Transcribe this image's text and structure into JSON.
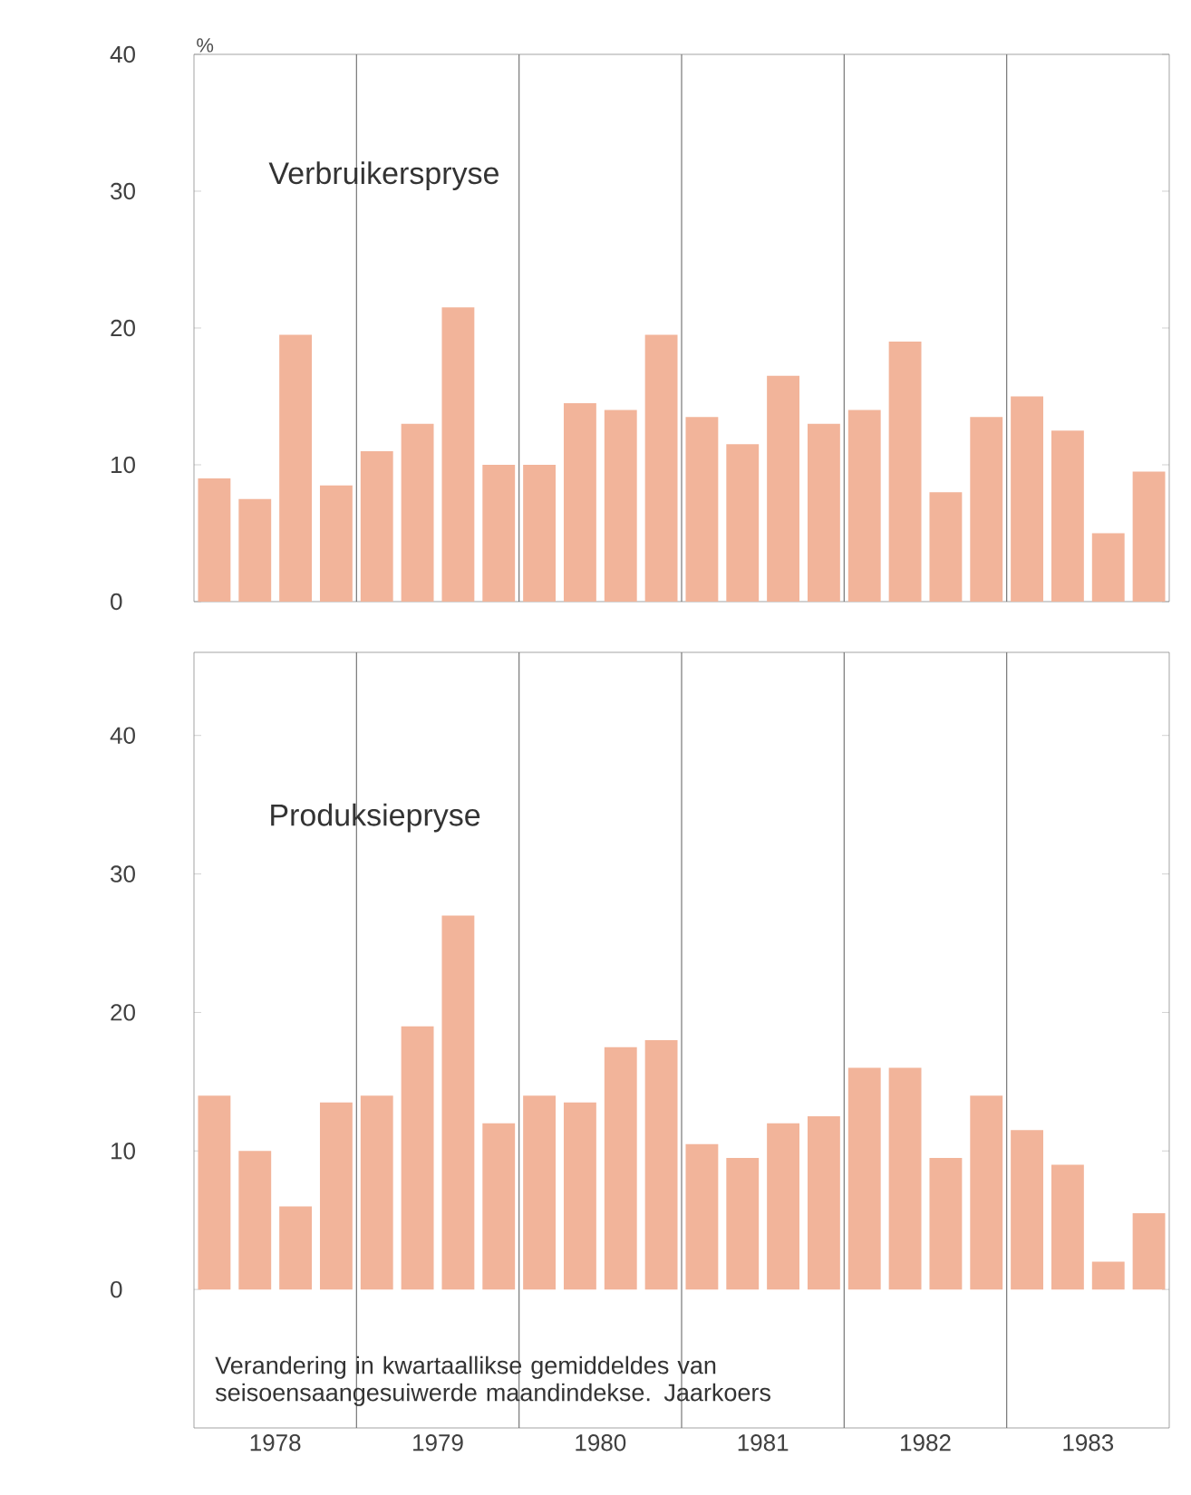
{
  "chart_data": [
    {
      "type": "bar",
      "title": "Verbruikerspryse",
      "ylabel": "%",
      "color": "#f2b49a",
      "x": [
        1978.125,
        1978.375,
        1978.625,
        1978.875,
        1979.125,
        1979.375,
        1979.625,
        1979.875,
        1980.125,
        1980.375,
        1980.625,
        1980.875,
        1981.125,
        1981.375,
        1981.625,
        1981.875,
        1982.125,
        1982.375,
        1982.625,
        1982.875,
        1983.125,
        1983.375,
        1983.625,
        1983.875
      ],
      "values": [
        9,
        7.5,
        19.5,
        8.5,
        11,
        13,
        21.5,
        10,
        10,
        14.5,
        14,
        19.5,
        13.5,
        11.5,
        16.5,
        13,
        14,
        19,
        8,
        13.5,
        15,
        12.5,
        5,
        9.5
      ],
      "xlim": [
        1978,
        1984
      ],
      "ylim": [
        0,
        40
      ],
      "yticks": [
        0,
        10,
        20,
        30,
        40
      ],
      "tick_labels": "y",
      "ref_lines": [
        {
          "axis": "x",
          "value": 1979
        },
        {
          "axis": "x",
          "value": 1980
        },
        {
          "axis": "x",
          "value": 1981
        },
        {
          "axis": "x",
          "value": 1982
        },
        {
          "axis": "x",
          "value": 1983
        }
      ]
    },
    {
      "type": "bar",
      "title": "Produksiepryse",
      "color": "#f2b49a",
      "x": [
        1978.125,
        1978.375,
        1978.625,
        1978.875,
        1979.125,
        1979.375,
        1979.625,
        1979.875,
        1980.125,
        1980.375,
        1980.625,
        1980.875,
        1981.125,
        1981.375,
        1981.625,
        1981.875,
        1982.125,
        1982.375,
        1982.625,
        1982.875,
        1983.125,
        1983.375,
        1983.625,
        1983.875
      ],
      "values": [
        14,
        10,
        6,
        13.5,
        14,
        19,
        27,
        12,
        14,
        13.5,
        17.5,
        18,
        10.5,
        9.5,
        12,
        12.5,
        16,
        16,
        9.5,
        14,
        11.5,
        9,
        2,
        5.5
      ],
      "xlim": [
        1978,
        1984
      ],
      "ylim": [
        -10,
        46
      ],
      "yticks": [
        0,
        10,
        20,
        30,
        40
      ],
      "xticks": [
        {
          "value": 1978.5,
          "label": "1978"
        },
        {
          "value": 1979.5,
          "label": "1979"
        },
        {
          "value": 1980.5,
          "label": "1980"
        },
        {
          "value": 1981.5,
          "label": "1981"
        },
        {
          "value": 1982.5,
          "label": "1982"
        },
        {
          "value": 1983.5,
          "label": "1983"
        }
      ],
      "ref_lines": [
        {
          "axis": "x",
          "value": 1979
        },
        {
          "axis": "x",
          "value": 1980
        },
        {
          "axis": "x",
          "value": 1981
        },
        {
          "axis": "x",
          "value": 1982
        },
        {
          "axis": "x",
          "value": 1983
        }
      ],
      "annotations": [
        "Verandering in kwartaallikse gemiddeldes van seisoensaangesuiwerde maandindekse. Jaarkoers"
      ]
    }
  ]
}
